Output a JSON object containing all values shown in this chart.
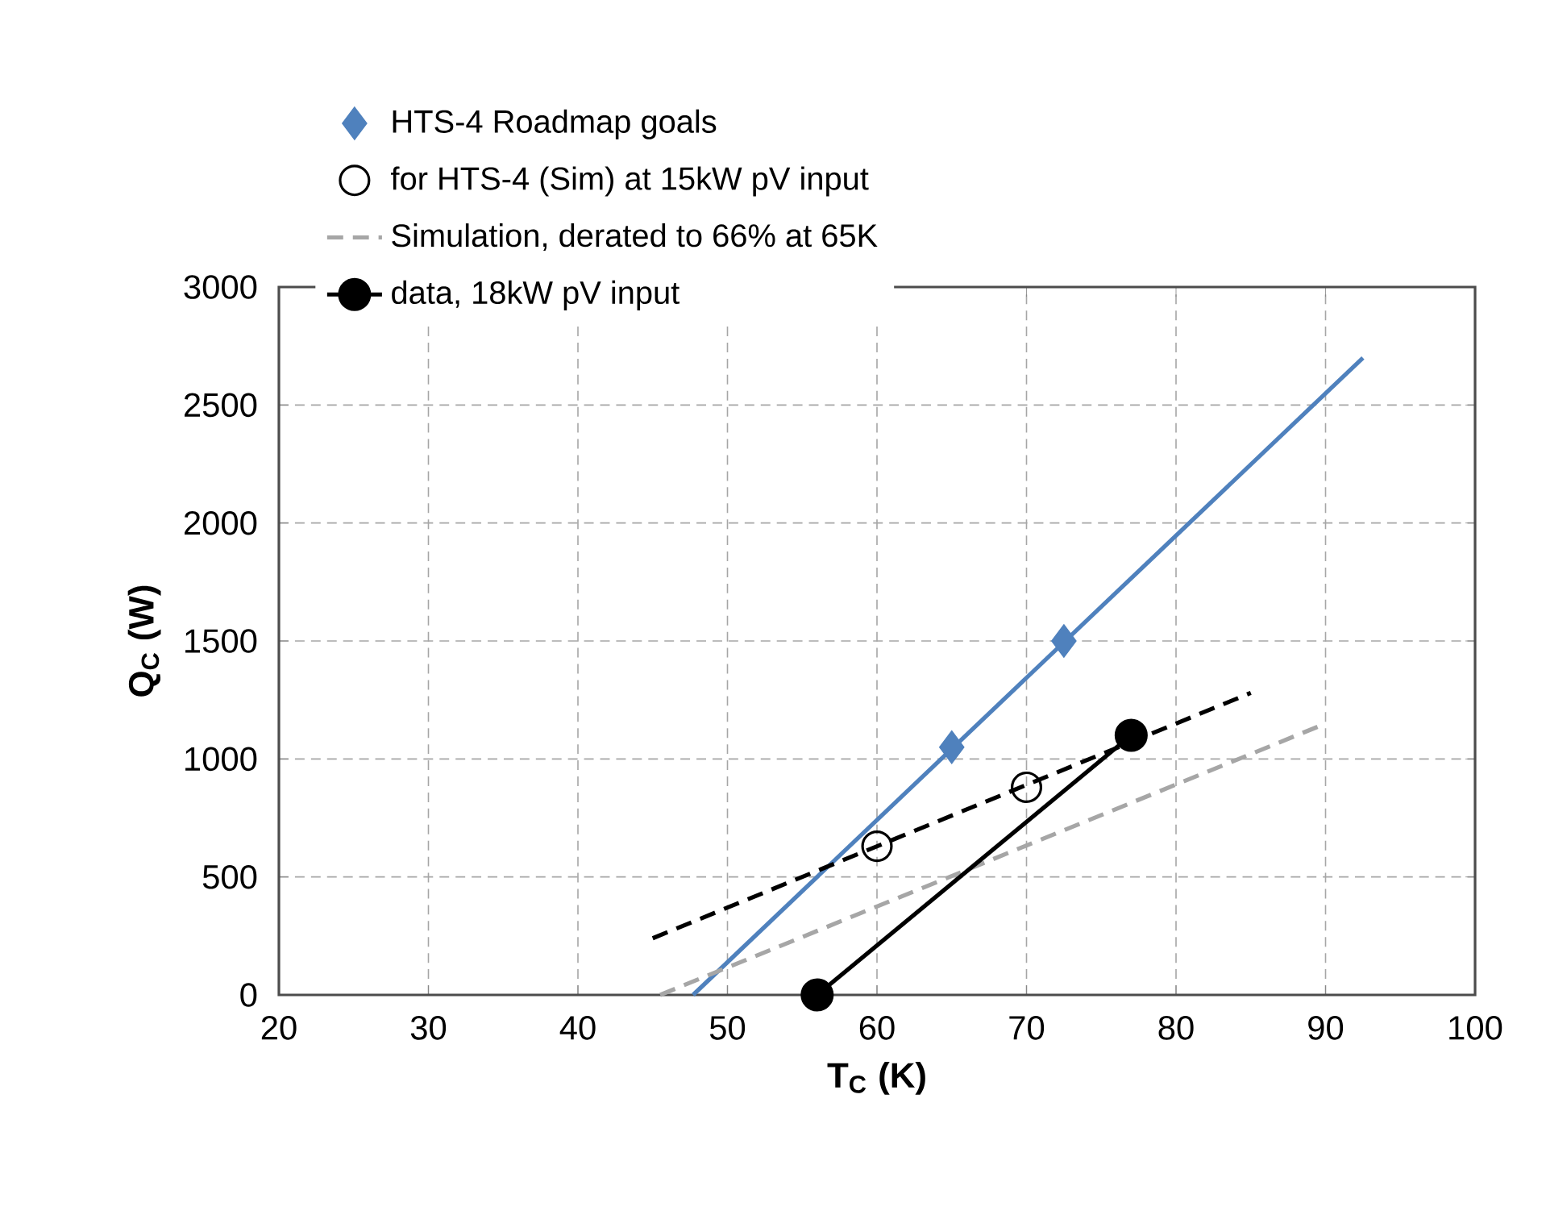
{
  "chart_data": {
    "type": "line",
    "xlabel": "T$_{C}$ (K)",
    "ylabel": "Q$_{C}$ (W)",
    "xlim": [
      20,
      100
    ],
    "xticks": [
      20,
      30,
      40,
      50,
      60,
      70,
      80,
      90,
      100
    ],
    "ylim": [
      0,
      3000
    ],
    "yticks": [
      0,
      500,
      1000,
      1500,
      2000,
      2500,
      3000
    ],
    "grid": true,
    "legend": "top left",
    "series": [
      {
        "name": "HTS-4 Roadmap goals",
        "type": "scatter",
        "marker": "diamond",
        "color": "#4f81bd",
        "x": [
          65,
          72.5
        ],
        "values": [
          1050,
          1500
        ]
      },
      {
        "marker": "none",
        "line_style": "solid",
        "color": "#4f81bd",
        "x": [
          47.7,
          92.5
        ],
        "values": [
          0,
          2700
        ]
      },
      {
        "name": "for HTS-4 (Sim) at 15kW pV input",
        "type": "scatter",
        "marker": "circle",
        "color": "#000000",
        "x": [
          60,
          70
        ],
        "values": [
          630,
          880
        ]
      },
      {
        "marker": "none",
        "line_style": "dashed",
        "color": "#000000",
        "x": [
          45,
          85
        ],
        "values": [
          240,
          1280
        ]
      },
      {
        "name": "Simulation, derated to 66% at 65K",
        "marker": "none",
        "line_style": "dashed",
        "color": "#a6a6a6",
        "x": [
          45.5,
          90
        ],
        "values": [
          0,
          1150
        ]
      },
      {
        "name": "data, 18kW pV input",
        "marker": "circle",
        "line_style": "solid",
        "color": "#000000",
        "x": [
          56,
          77
        ],
        "values": [
          0,
          1100
        ]
      }
    ]
  }
}
